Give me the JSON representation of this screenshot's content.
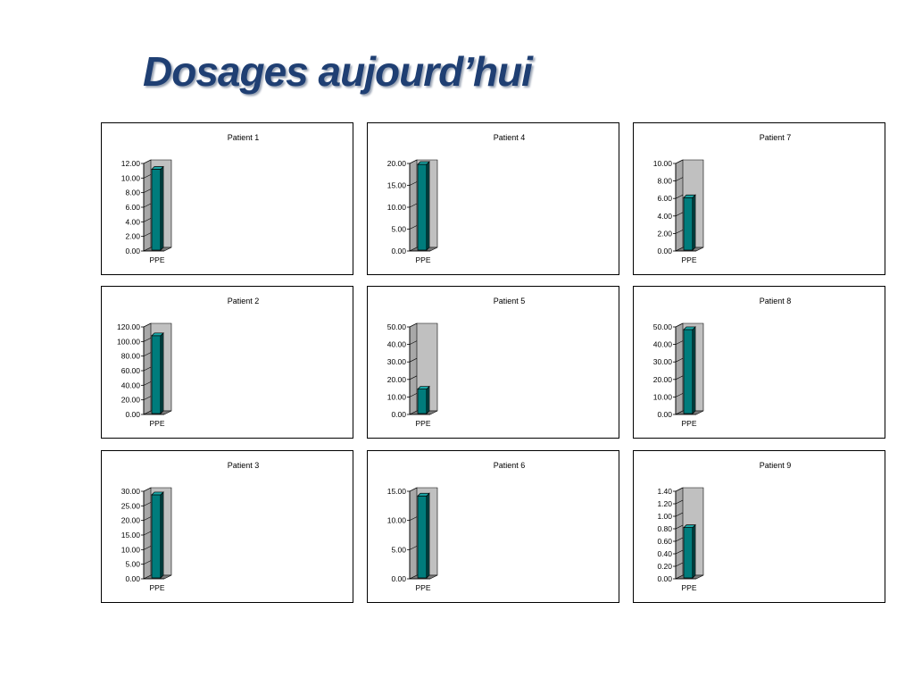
{
  "slide": {
    "title": "Dosages aujourd’hui"
  },
  "colors": {
    "bar_front": "#007c7c",
    "bar_side": "#004848",
    "bar_top": "#1aa8a8",
    "wall": "#c0c0c0",
    "wall_side": "#a8a8a8",
    "floor": "#7a7a7a",
    "title": "#1f3f73"
  },
  "chart_data": [
    {
      "type": "bar",
      "title": "Patient 1",
      "categories": [
        "PPE"
      ],
      "values": [
        11.2
      ],
      "ylim": [
        0,
        12
      ],
      "yticks": [
        "0.00",
        "2.00",
        "4.00",
        "6.00",
        "8.00",
        "10.00",
        "12.00"
      ],
      "grid": false,
      "legend": "none"
    },
    {
      "type": "bar",
      "title": "Patient 4",
      "categories": [
        "PPE"
      ],
      "values": [
        19.8
      ],
      "ylim": [
        0,
        20
      ],
      "yticks": [
        "0.00",
        "5.00",
        "10.00",
        "15.00",
        "20.00"
      ],
      "grid": false,
      "legend": "none"
    },
    {
      "type": "bar",
      "title": "Patient 7",
      "categories": [
        "PPE"
      ],
      "values": [
        6.1
      ],
      "ylim": [
        0,
        10
      ],
      "yticks": [
        "0.00",
        "2.00",
        "4.00",
        "6.00",
        "8.00",
        "10.00"
      ],
      "grid": false,
      "legend": "none"
    },
    {
      "type": "bar",
      "title": "Patient 2",
      "categories": [
        "PPE"
      ],
      "values": [
        108
      ],
      "ylim": [
        0,
        120
      ],
      "yticks": [
        "0.00",
        "20.00",
        "40.00",
        "60.00",
        "80.00",
        "100.00",
        "120.00"
      ],
      "grid": false,
      "legend": "none"
    },
    {
      "type": "bar",
      "title": "Patient 5",
      "categories": [
        "PPE"
      ],
      "values": [
        14.5
      ],
      "ylim": [
        0,
        50
      ],
      "yticks": [
        "0.00",
        "10.00",
        "20.00",
        "30.00",
        "40.00",
        "50.00"
      ],
      "grid": false,
      "legend": "none"
    },
    {
      "type": "bar",
      "title": "Patient 8",
      "categories": [
        "PPE"
      ],
      "values": [
        48.5
      ],
      "ylim": [
        0,
        50
      ],
      "yticks": [
        "0.00",
        "10.00",
        "20.00",
        "30.00",
        "40.00",
        "50.00"
      ],
      "grid": false,
      "legend": "none"
    },
    {
      "type": "bar",
      "title": "Patient 3",
      "categories": [
        "PPE"
      ],
      "values": [
        28.8
      ],
      "ylim": [
        0,
        30
      ],
      "yticks": [
        "0.00",
        "5.00",
        "10.00",
        "15.00",
        "20.00",
        "25.00",
        "30.00"
      ],
      "grid": false,
      "legend": "none"
    },
    {
      "type": "bar",
      "title": "Patient 6",
      "categories": [
        "PPE"
      ],
      "values": [
        14.2
      ],
      "ylim": [
        0,
        15
      ],
      "yticks": [
        "0.00",
        "5.00",
        "10.00",
        "15.00"
      ],
      "grid": false,
      "legend": "none"
    },
    {
      "type": "bar",
      "title": "Patient 9",
      "categories": [
        "PPE"
      ],
      "values": [
        0.82
      ],
      "ylim": [
        0,
        1.4
      ],
      "yticks": [
        "0.00",
        "0.20",
        "0.40",
        "0.60",
        "0.80",
        "1.00",
        "1.20",
        "1.40"
      ],
      "grid": false,
      "legend": "none"
    }
  ]
}
